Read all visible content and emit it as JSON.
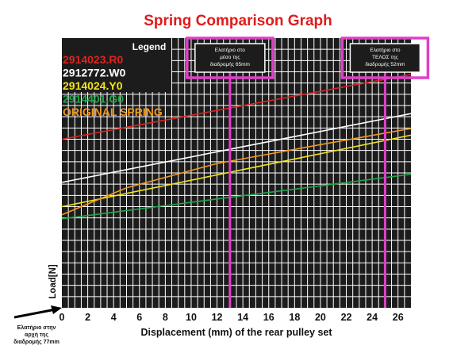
{
  "chart_data": {
    "type": "line",
    "title": "Spring Comparison Graph",
    "xlabel": "Displacement (mm) of the rear pulley set",
    "ylabel": "Load[N]",
    "xlim": [
      0,
      27
    ],
    "xticks": [
      "0",
      "2",
      "4",
      "6",
      "8",
      "10",
      "12",
      "14",
      "16",
      "18",
      "20",
      "22",
      "24",
      "26"
    ],
    "grid": true,
    "legend_title": "Legend",
    "legend_position": "top-left",
    "series": [
      {
        "name": "2914023.R0",
        "color": "#e0231f",
        "x": [
          0,
          27
        ],
        "y": [
          0.625,
          0.865
        ]
      },
      {
        "name": "2912772.W0",
        "color": "#ffffff",
        "x": [
          0,
          27
        ],
        "y": [
          0.465,
          0.72
        ]
      },
      {
        "name": "2914024.Y0",
        "color": "#f2e41a",
        "x": [
          0,
          27
        ],
        "y": [
          0.375,
          0.64
        ]
      },
      {
        "name": "2914401.G0",
        "color": "#1fa84a",
        "x": [
          0,
          27
        ],
        "y": [
          0.33,
          0.495
        ]
      },
      {
        "name": "ORIGINAL SPRING",
        "color": "#f29a1c",
        "x": [
          0,
          5,
          12,
          20,
          27
        ],
        "y": [
          0.345,
          0.445,
          0.535,
          0.605,
          0.665
        ]
      }
    ],
    "markers": [
      {
        "x": 13,
        "label_lines": [
          "Ελατήριο στο",
          "μέσο της",
          "διαδρομής 65mm"
        ]
      },
      {
        "x": 25,
        "label_lines": [
          "Ελατήριο στο",
          "ΤΕΛΟΣ της",
          "διαδρομής 52mm"
        ]
      }
    ],
    "start_note_lines": [
      "Ελατήριο στην",
      "αρχή της",
      "διαδρομής 77mm"
    ]
  },
  "colors": {
    "background": "#1c1c1c",
    "grid": "#ffffff",
    "marker": "#e040c8",
    "title": "#e01b1b",
    "arrow": "#000000"
  }
}
